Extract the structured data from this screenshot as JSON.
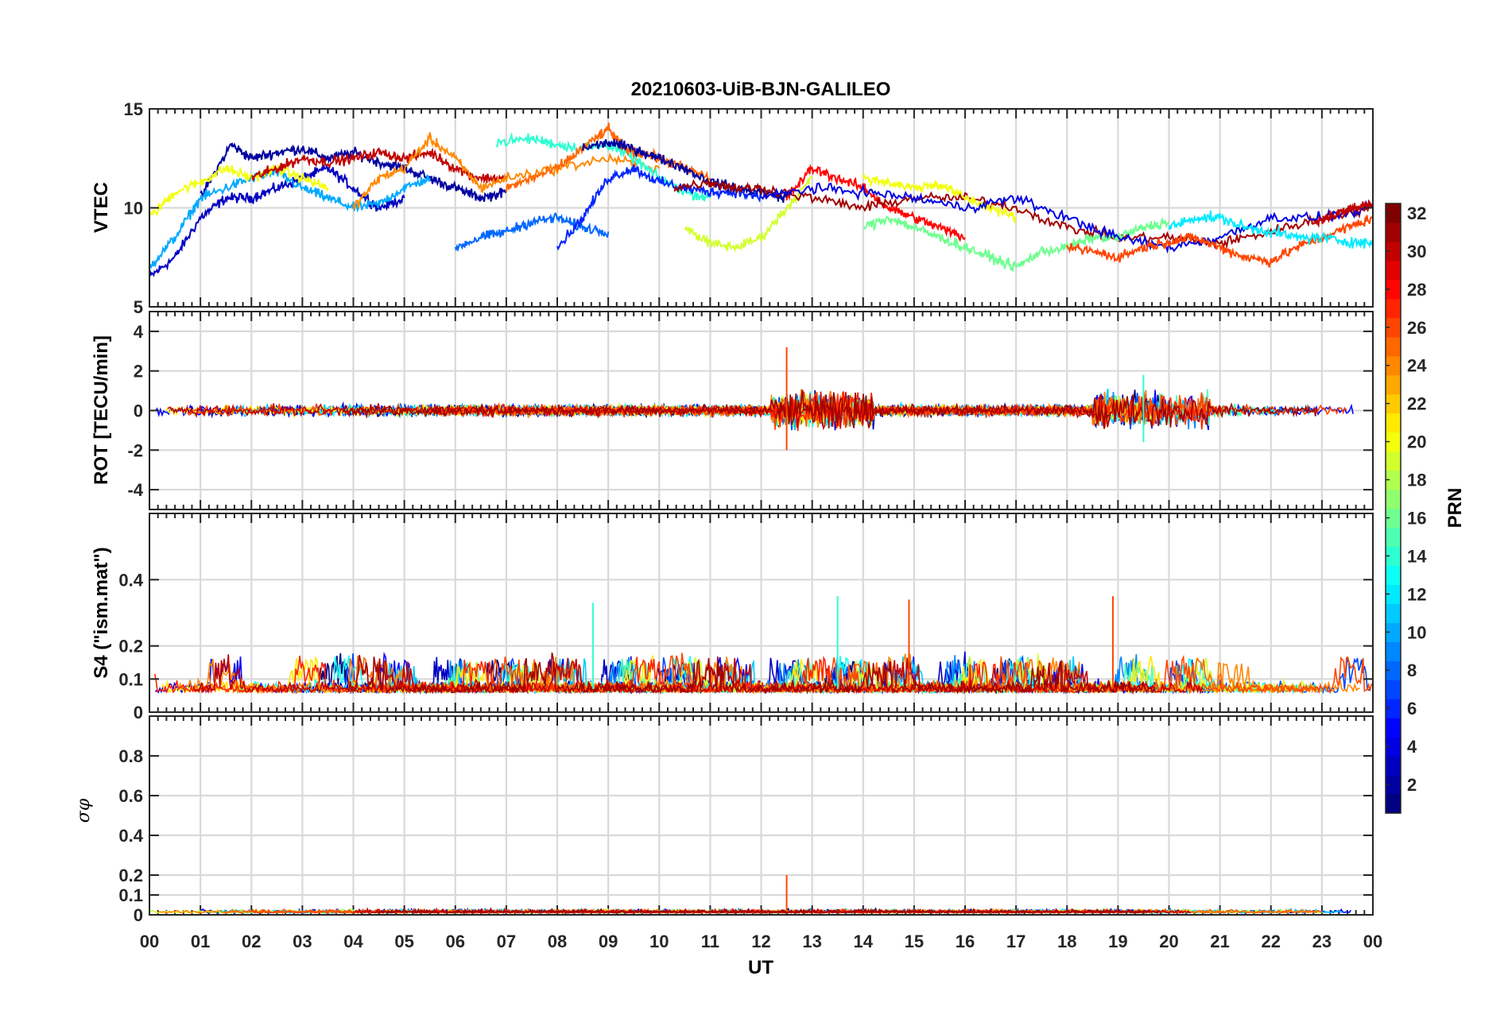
{
  "chart_data": {
    "type": "line",
    "title": "20210603-UiB-BJN-GALILEO",
    "xlabel": "UT",
    "x_ticks": [
      "00",
      "01",
      "02",
      "03",
      "04",
      "05",
      "06",
      "07",
      "08",
      "09",
      "10",
      "11",
      "12",
      "13",
      "14",
      "15",
      "16",
      "17",
      "18",
      "19",
      "20",
      "21",
      "22",
      "23",
      "00"
    ],
    "xlim": [
      0,
      24
    ],
    "grid": true,
    "colorbar": {
      "label": "PRN",
      "colormap": "jet",
      "range": [
        1,
        32
      ],
      "ticks": [
        "2",
        "4",
        "6",
        "8",
        "10",
        "12",
        "14",
        "16",
        "18",
        "20",
        "22",
        "24",
        "26",
        "28",
        "30",
        "32"
      ]
    },
    "panels": [
      {
        "id": "vtec",
        "ylabel": "VTEC",
        "ylim": [
          5,
          15
        ],
        "yticks": [
          "5",
          "10",
          "15"
        ],
        "series": [
          {
            "prn": 3,
            "x": [
              0,
              0.5,
              1.0,
              1.5,
              2.0,
              2.5,
              3.0,
              3.5,
              4.0,
              4.5,
              5.0
            ],
            "y": [
              6.5,
              7.5,
              9.5,
              10.5,
              10.5,
              11.0,
              11.5,
              12.0,
              11.0,
              10.0,
              10.5
            ]
          },
          {
            "prn": 2,
            "x": [
              1.0,
              1.6,
              2.0,
              2.5,
              3.0,
              3.5,
              4.0,
              4.5,
              5.0,
              5.5,
              6.0,
              6.5,
              7.0
            ],
            "y": [
              10.5,
              13.2,
              12.5,
              12.8,
              13.0,
              12.5,
              12.8,
              12.3,
              12.0,
              11.5,
              11.0,
              10.5,
              10.8
            ]
          },
          {
            "prn": 10,
            "x": [
              0,
              0.5,
              1.0,
              1.5,
              2.0,
              2.5,
              3.0,
              3.5,
              4.0,
              4.5,
              5.0,
              5.5
            ],
            "y": [
              7.0,
              8.5,
              10.5,
              11.0,
              11.5,
              11.8,
              11.0,
              10.5,
              10.0,
              10.2,
              11.0,
              11.5
            ]
          },
          {
            "prn": 20,
            "x": [
              0,
              0.5,
              1.0,
              1.5,
              2.0,
              2.5,
              3.0,
              3.5
            ],
            "y": [
              9.5,
              10.8,
              11.3,
              12.0,
              11.5,
              12.0,
              11.5,
              11.0
            ]
          },
          {
            "prn": 30,
            "x": [
              2.0,
              2.5,
              3.0,
              3.5,
              4.0,
              4.5,
              5.0,
              5.5,
              6.0,
              6.5,
              7.0
            ],
            "y": [
              11.5,
              12.0,
              12.5,
              12.3,
              12.5,
              12.8,
              12.5,
              12.8,
              12.0,
              11.5,
              11.5
            ]
          },
          {
            "prn": 24,
            "x": [
              4.0,
              4.5,
              5.0,
              5.5,
              6.0,
              6.5,
              7.0,
              8.0,
              9.0,
              10.0
            ],
            "y": [
              10.0,
              11.5,
              12.0,
              13.5,
              12.5,
              11.0,
              11.5,
              12.0,
              12.5,
              12.0
            ]
          },
          {
            "prn": 14,
            "x": [
              6.8,
              7.5,
              8.0,
              8.5,
              9.0,
              9.5,
              10.0,
              10.5,
              11.0
            ],
            "y": [
              13.3,
              13.5,
              13.2,
              13.0,
              13.2,
              12.5,
              11.5,
              10.8,
              10.5
            ]
          },
          {
            "prn": 8,
            "x": [
              6.0,
              6.5,
              7.0,
              7.5,
              8.0,
              8.5,
              9.0
            ],
            "y": [
              8.0,
              8.5,
              8.8,
              9.3,
              9.5,
              9.0,
              8.8
            ]
          },
          {
            "prn": 6,
            "x": [
              8.0,
              8.5,
              9.0,
              9.5,
              10.0,
              10.5,
              11.0,
              11.5,
              12.0
            ],
            "y": [
              8.0,
              9.5,
              11.5,
              12.0,
              11.3,
              11.0,
              10.8,
              10.8,
              10.5
            ]
          },
          {
            "prn": 25,
            "x": [
              7.0,
              7.5,
              8.0,
              8.5,
              9.0,
              9.3,
              9.6,
              10.0,
              10.5,
              11.0
            ],
            "y": [
              11.0,
              11.5,
              12.0,
              13.0,
              14.0,
              13.0,
              12.8,
              12.5,
              12.0,
              11.5
            ]
          },
          {
            "prn": 2,
            "x": [
              8.5,
              9.0,
              9.5,
              10.0,
              10.5,
              11.0,
              11.5,
              12.0,
              12.5
            ],
            "y": [
              13.0,
              13.3,
              13.0,
              12.5,
              12.0,
              11.3,
              11.0,
              10.8,
              10.5
            ]
          },
          {
            "prn": 19,
            "x": [
              10.5,
              11.0,
              11.5,
              12.0,
              12.5,
              13.0
            ],
            "y": [
              9.0,
              8.2,
              8.0,
              8.5,
              10.0,
              11.5
            ]
          },
          {
            "prn": 28,
            "x": [
              12.5,
              13.0,
              13.5,
              14.0,
              14.5,
              15.0,
              15.5,
              16.0
            ],
            "y": [
              10.5,
              12.0,
              11.5,
              11.0,
              10.0,
              9.5,
              9.0,
              8.5
            ]
          },
          {
            "prn": 31,
            "x": [
              10.3,
              11.0,
              11.5,
              12.0,
              13.0,
              14.0,
              15.0,
              16.0,
              17.0,
              18.0,
              19.0,
              20.0,
              21.0,
              22.0,
              23.0,
              24.0
            ],
            "y": [
              11.0,
              11.3,
              11.0,
              11.0,
              10.5,
              10.0,
              10.5,
              10.5,
              10.0,
              9.0,
              8.5,
              8.5,
              8.2,
              8.8,
              9.5,
              10.0
            ]
          },
          {
            "prn": 20,
            "x": [
              14.0,
              14.5,
              15.0,
              15.5,
              16.0,
              16.5,
              17.0
            ],
            "y": [
              11.5,
              11.3,
              11.0,
              11.2,
              10.5,
              10.0,
              9.5
            ]
          },
          {
            "prn": 16,
            "x": [
              14.0,
              14.5,
              15.0,
              15.5,
              16.0,
              16.5,
              17.0,
              17.5,
              18.0,
              18.5,
              19.0,
              19.5,
              20.0
            ],
            "y": [
              9.0,
              9.5,
              9.0,
              8.5,
              8.0,
              7.5,
              7.0,
              7.8,
              8.0,
              8.5,
              8.5,
              9.0,
              9.3
            ]
          },
          {
            "prn": 4,
            "x": [
              12.0,
              13.0,
              14.0,
              15.0,
              16.0,
              17.0,
              18.0,
              19.0,
              20.0,
              21.0,
              22.0,
              23.0,
              24.0
            ],
            "y": [
              10.5,
              11.0,
              10.8,
              10.5,
              10.0,
              10.5,
              9.5,
              8.5,
              8.0,
              8.5,
              9.5,
              9.5,
              10.0
            ]
          },
          {
            "prn": 26,
            "x": [
              18.0,
              18.5,
              19.0,
              19.5,
              20.0,
              20.5,
              21.0,
              21.5,
              22.0,
              22.5,
              23.0,
              23.5,
              24.0
            ],
            "y": [
              8.0,
              7.8,
              7.5,
              8.0,
              8.3,
              8.5,
              8.0,
              7.5,
              7.3,
              8.0,
              8.5,
              9.0,
              9.5
            ]
          },
          {
            "prn": 12,
            "x": [
              20.0,
              20.5,
              21.0,
              21.5,
              22.0,
              22.5,
              23.0,
              23.5,
              24.0
            ],
            "y": [
              9.0,
              9.5,
              9.5,
              9.0,
              8.8,
              8.5,
              8.5,
              8.3,
              8.2
            ]
          },
          {
            "prn": 30,
            "x": [
              22.8,
              23.2,
              23.6,
              24.0
            ],
            "y": [
              9.2,
              9.6,
              10.0,
              10.2
            ]
          }
        ]
      },
      {
        "id": "rot",
        "ylabel": "ROT [TECU/min]",
        "ylim": [
          -5,
          5
        ],
        "yticks": [
          "-4",
          "-2",
          "0",
          "2",
          "4"
        ],
        "annotations": [
          {
            "x": 12.5,
            "y_max": 3.2,
            "y_min": -2.0
          },
          {
            "x": 19.5,
            "y_max": 1.8,
            "y_min": -1.6
          }
        ]
      },
      {
        "id": "s4",
        "ylabel": "S4 (\"ism.mat\")",
        "ylim": [
          0,
          0.6
        ],
        "yticks": [
          "0",
          "0.1",
          "0.2",
          "0.4"
        ],
        "annotations": [
          {
            "x": 18.9,
            "y_max": 0.35
          },
          {
            "x": 13.5,
            "y_max": 0.35
          },
          {
            "x": 14.9,
            "y_max": 0.34
          },
          {
            "x": 8.7,
            "y_max": 0.33
          }
        ]
      },
      {
        "id": "sigma_phi",
        "ylabel": "σφ",
        "ylim": [
          0,
          1
        ],
        "yticks": [
          "0",
          "0.1",
          "0.2",
          "0.4",
          "0.6",
          "0.8"
        ],
        "annotations": [
          {
            "x": 12.5,
            "y_max": 0.2
          }
        ]
      }
    ]
  }
}
